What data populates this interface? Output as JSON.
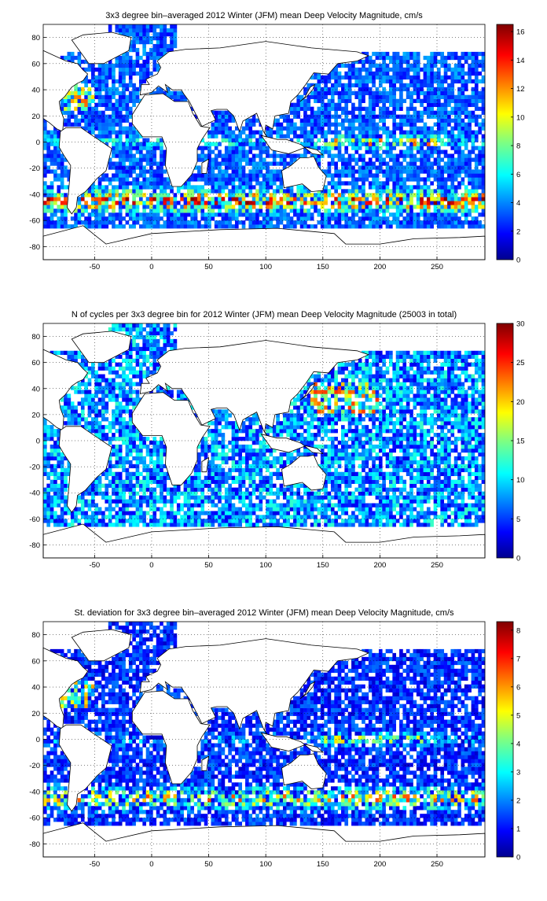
{
  "figure": {
    "background": "#ffffff",
    "colormap": "jet"
  },
  "chart_data": [
    {
      "type": "heatmap",
      "title": "3x3 degree bin–averaged 2012 Winter (JFM) mean Deep Velocity Magnitude, cm/s",
      "xlabel": "",
      "ylabel": "",
      "xlim": [
        -95,
        292
      ],
      "ylim": [
        -90,
        90
      ],
      "xticks": [
        -50,
        0,
        50,
        100,
        150,
        200,
        250
      ],
      "yticks": [
        -80,
        -60,
        -40,
        -20,
        0,
        20,
        40,
        60,
        80
      ],
      "grid": true,
      "bin_size_deg": 3,
      "colorbar": {
        "min": 0,
        "max": 16.5,
        "ticks": [
          0,
          2,
          4,
          6,
          8,
          10,
          12,
          14,
          16
        ]
      }
    },
    {
      "type": "heatmap",
      "title": "N of cycles per 3x3 degree bin for 2012 Winter (JFM) mean Deep Velocity Magnitude (25003 in total)",
      "xlabel": "",
      "ylabel": "",
      "xlim": [
        -95,
        292
      ],
      "ylim": [
        -90,
        90
      ],
      "xticks": [
        -50,
        0,
        50,
        100,
        150,
        200,
        250
      ],
      "yticks": [
        -80,
        -60,
        -40,
        -20,
        0,
        20,
        40,
        60,
        80
      ],
      "grid": true,
      "bin_size_deg": 3,
      "colorbar": {
        "min": 0,
        "max": 30,
        "ticks": [
          0,
          5,
          10,
          15,
          20,
          25,
          30
        ]
      }
    },
    {
      "type": "heatmap",
      "title": "St. deviation for 3x3 degree bin–averaged 2012 Winter (JFM) mean Deep Velocity Magnitude, cm/s",
      "xlabel": "",
      "ylabel": "",
      "xlim": [
        -95,
        292
      ],
      "ylim": [
        -90,
        90
      ],
      "xticks": [
        -50,
        0,
        50,
        100,
        150,
        200,
        250
      ],
      "yticks": [
        -80,
        -60,
        -40,
        -20,
        0,
        20,
        40,
        60,
        80
      ],
      "grid": true,
      "bin_size_deg": 3,
      "colorbar": {
        "min": 0,
        "max": 8.3,
        "ticks": [
          0,
          1,
          2,
          3,
          4,
          5,
          6,
          7,
          8
        ]
      }
    }
  ]
}
